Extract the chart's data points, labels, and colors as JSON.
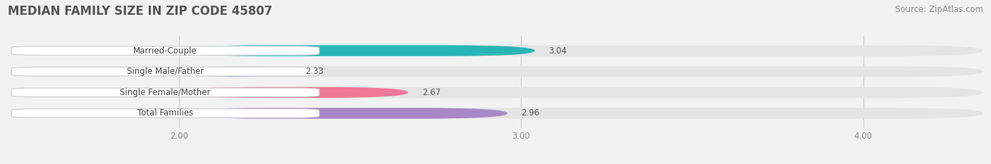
{
  "title": "MEDIAN FAMILY SIZE IN ZIP CODE 45807",
  "source": "Source: ZipAtlas.com",
  "categories": [
    "Married-Couple",
    "Single Male/Father",
    "Single Female/Mother",
    "Total Families"
  ],
  "values": [
    3.04,
    2.33,
    2.67,
    2.96
  ],
  "bar_colors": [
    "#29b5b5",
    "#aabde8",
    "#f07898",
    "#a888c8"
  ],
  "background_color": "#f2f2f2",
  "bar_bg_color": "#e4e4e4",
  "label_bg_color": "#ffffff",
  "label_border_color": "#cccccc",
  "xlim_min": 1.5,
  "xlim_max": 4.35,
  "xstart": 2.0,
  "xticks": [
    2.0,
    3.0,
    4.0
  ],
  "xtick_labels": [
    "2.00",
    "3.00",
    "4.00"
  ],
  "title_fontsize": 12,
  "source_fontsize": 8.5,
  "label_fontsize": 8.5,
  "value_fontsize": 8.5,
  "bar_height": 0.52,
  "grid_color": "#cccccc",
  "value_color": "#555555",
  "label_text_color": "#444444",
  "tick_color": "#888888"
}
